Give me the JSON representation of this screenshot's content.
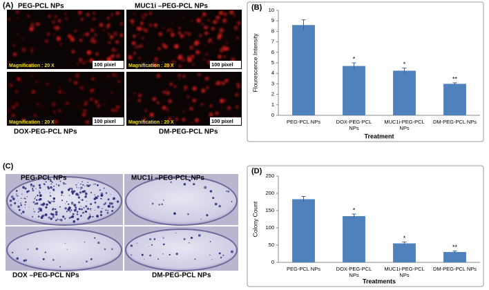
{
  "panels": {
    "A": {
      "label": "(A)",
      "images": [
        {
          "caption": "PEG-PCL NPs",
          "magnification": "Magnification : 20 X",
          "scale": "100 pixel"
        },
        {
          "caption": "MUC1i –PEG-PCL NPs",
          "magnification": "Magnification : 20 X",
          "scale": "100 pixel"
        },
        {
          "caption": "DOX-PEG-PCL NPs",
          "magnification": "Magnification : 20 X",
          "scale": "100 pixel"
        },
        {
          "caption": "DM-PEG-PCL  NPs",
          "magnification": "Magnification : 20 X",
          "scale": "100 pixel"
        }
      ]
    },
    "C": {
      "label": "(C)",
      "images": [
        {
          "caption": "PEG-PCL  NPs"
        },
        {
          "caption": "MUC1i –PEG-PCL NPs"
        },
        {
          "caption": "DOX –PEG-PCL NPs"
        },
        {
          "caption": "DM-PEG-PCL  NPs"
        }
      ]
    }
  },
  "chart_data": [
    {
      "type": "bar",
      "label": "(B)",
      "xlabel": "Treatment",
      "ylabel": "Flourescence Intensity",
      "categories": [
        "PEG-PCL NPs",
        "DOX-PEG-PCL NPs",
        "MUC1i-PEG-PCL NPs",
        "DM-PEG-PCL NPs"
      ],
      "series": [
        {
          "color": "#4f81bd",
          "values": [
            8.6,
            4.7,
            4.25,
            3.0
          ],
          "errors": [
            0.5,
            0.3,
            0.25,
            0.1
          ],
          "significance": [
            null,
            "*",
            "*",
            "**"
          ]
        }
      ],
      "ylim": [
        0,
        10
      ],
      "yticks": [
        0,
        1,
        2,
        3,
        4,
        5,
        6,
        7,
        8,
        9,
        10
      ]
    },
    {
      "type": "bar",
      "label": "(D)",
      "xlabel": "Treatments",
      "ylabel": "Colony Count",
      "categories": [
        "PEG-PCL NPs",
        "DOX-PEG-PCL NPs",
        "MUC1i-PEG-PCL NPs",
        "DM-PEG-PCL NPs"
      ],
      "series": [
        {
          "color": "#4f81bd",
          "values": [
            183,
            134,
            55,
            30
          ],
          "errors": [
            8,
            6,
            4,
            3
          ],
          "significance": [
            null,
            "*",
            "*",
            "**"
          ]
        }
      ],
      "ylim": [
        0,
        250
      ],
      "yticks": [
        0,
        50,
        100,
        150,
        200,
        250
      ]
    }
  ]
}
